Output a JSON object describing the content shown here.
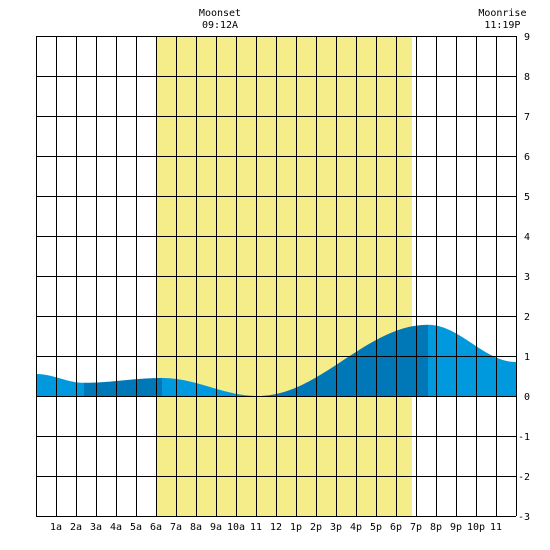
{
  "chart_data": {
    "type": "area",
    "title": "",
    "xlabel": "",
    "ylabel": "",
    "xlim": [
      0,
      24
    ],
    "ylim": [
      -3,
      9
    ],
    "grid": true,
    "x_tick_labels": [
      "1a",
      "2a",
      "3a",
      "4a",
      "5a",
      "6a",
      "7a",
      "8a",
      "9a",
      "10a",
      "11",
      "12",
      "1p",
      "2p",
      "3p",
      "4p",
      "5p",
      "6p",
      "7p",
      "8p",
      "9p",
      "10p",
      "11"
    ],
    "y_ticks": [
      -3,
      -2,
      -1,
      0,
      1,
      2,
      3,
      4,
      5,
      6,
      7,
      8,
      9
    ],
    "y_tick_labels": [
      "-3",
      "-2",
      "-1",
      "0",
      "1",
      "2",
      "3",
      "4",
      "5",
      "6",
      "7",
      "8",
      "9"
    ],
    "daylight": {
      "start": 6.0,
      "end": 18.8
    },
    "moon_events": [
      {
        "label": "Moonset",
        "time": "09:12A",
        "hour": 9.2
      },
      {
        "label": "Moonrise",
        "time": "11:19P",
        "hour": 23.32
      }
    ],
    "tide_extrema": [
      {
        "hour": 0.0,
        "value": 0.55
      },
      {
        "hour": 2.4,
        "value": 0.33
      },
      {
        "hour": 6.3,
        "value": 0.45
      },
      {
        "hour": 11.1,
        "value": 0.0
      },
      {
        "hour": 19.6,
        "value": 1.78
      },
      {
        "hour": 24.0,
        "value": 0.85
      }
    ],
    "shading_breaks": [
      2.4,
      6.3,
      11.1,
      19.6
    ],
    "colors": {
      "daylight": "#f5ec8a",
      "tide_light": "#0099dd",
      "tide_dark": "#0077b6",
      "grid": "#000000"
    }
  }
}
